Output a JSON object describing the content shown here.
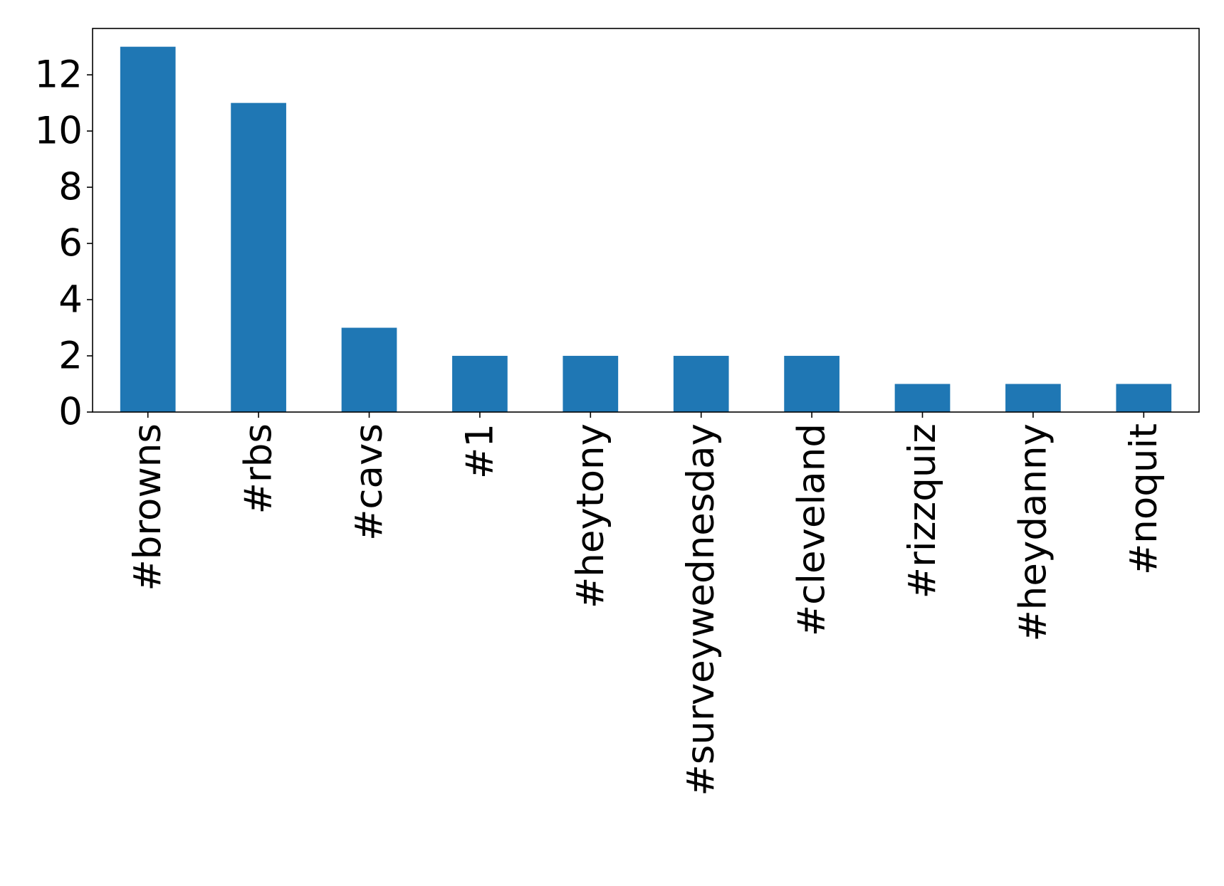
{
  "chart_data": {
    "type": "bar",
    "title": "",
    "xlabel": "",
    "ylabel": "",
    "categories": [
      "#browns",
      "#rbs",
      "#cavs",
      "#1",
      "#heytony",
      "#surveywednesday",
      "#cleveland",
      "#rizzquiz",
      "#heydanny",
      "#noquit"
    ],
    "values": [
      13,
      11,
      3,
      2,
      2,
      2,
      2,
      1,
      1,
      1
    ],
    "ylim": [
      0,
      13.65
    ],
    "yticks": [
      0,
      2,
      4,
      6,
      8,
      10,
      12
    ],
    "grid": false,
    "legend": "none",
    "bar_color": "#1f77b4"
  }
}
